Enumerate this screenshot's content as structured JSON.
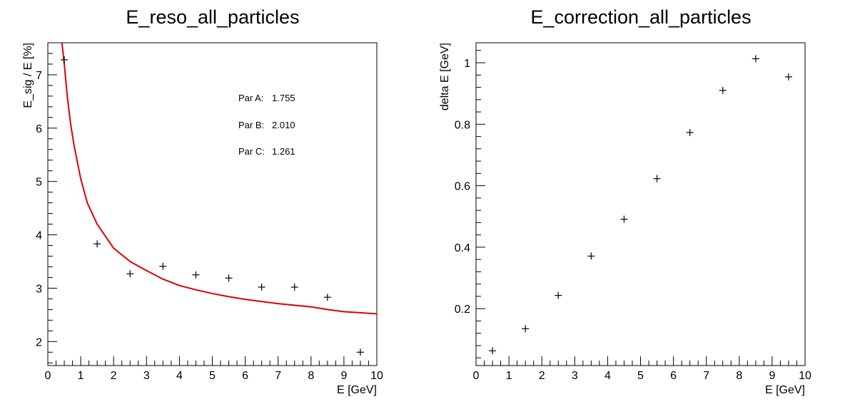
{
  "chart_data": [
    {
      "type": "scatter",
      "title": "E_reso_all_particles",
      "xlabel": "E [GeV]",
      "ylabel": "E_sig / E [%]",
      "xlim": [
        0,
        10
      ],
      "ylim": [
        1.55,
        7.6
      ],
      "grid": false,
      "x_ticks": [
        "0",
        "1",
        "2",
        "3",
        "4",
        "5",
        "6",
        "7",
        "8",
        "9",
        "10"
      ],
      "y_ticks": [
        "2",
        "3",
        "4",
        "5",
        "6",
        "7"
      ],
      "points": {
        "x": [
          0.5,
          1.5,
          2.5,
          3.5,
          4.5,
          5.5,
          6.5,
          7.5,
          8.5,
          9.5
        ],
        "y": [
          7.28,
          3.83,
          3.27,
          3.41,
          3.25,
          3.19,
          3.02,
          3.02,
          2.83,
          1.8
        ]
      },
      "fit": {
        "color": "#dd0000",
        "params": [
          {
            "label": "Par A:",
            "value": "1.755"
          },
          {
            "label": "Par B:",
            "value": "2.010"
          },
          {
            "label": "Par C:",
            "value": "1.261"
          }
        ],
        "sample_x": [
          0.43,
          0.5,
          0.6,
          0.7,
          0.8,
          1,
          1.2,
          1.5,
          2,
          2.5,
          3,
          3.5,
          4,
          4.5,
          5,
          5.5,
          6,
          6.5,
          7,
          7.5,
          8,
          8.5,
          9,
          9.5,
          10
        ],
        "sample_y": [
          7.6,
          7.2,
          6.55,
          6.05,
          5.67,
          5.05,
          4.6,
          4.2,
          3.75,
          3.5,
          3.33,
          3.17,
          3.05,
          2.97,
          2.9,
          2.84,
          2.79,
          2.75,
          2.71,
          2.68,
          2.65,
          2.6,
          2.56,
          2.54,
          2.52
        ]
      }
    },
    {
      "type": "scatter",
      "title": "E_correction_all_particles",
      "xlabel": "E [GeV]",
      "ylabel": "delta E [GeV]",
      "xlim": [
        0,
        10
      ],
      "ylim": [
        0.015,
        1.065
      ],
      "grid": false,
      "x_ticks": [
        "0",
        "1",
        "2",
        "3",
        "4",
        "5",
        "6",
        "7",
        "8",
        "9",
        "10"
      ],
      "y_ticks": [
        "0.2",
        "0.4",
        "0.6",
        "0.8",
        "1"
      ],
      "points": {
        "x": [
          0.5,
          1.5,
          2.5,
          3.5,
          4.5,
          5.5,
          6.5,
          7.5,
          8.5,
          9.5
        ],
        "y": [
          0.063,
          0.135,
          0.243,
          0.371,
          0.491,
          0.623,
          0.773,
          0.91,
          1.013,
          0.954
        ]
      }
    }
  ]
}
